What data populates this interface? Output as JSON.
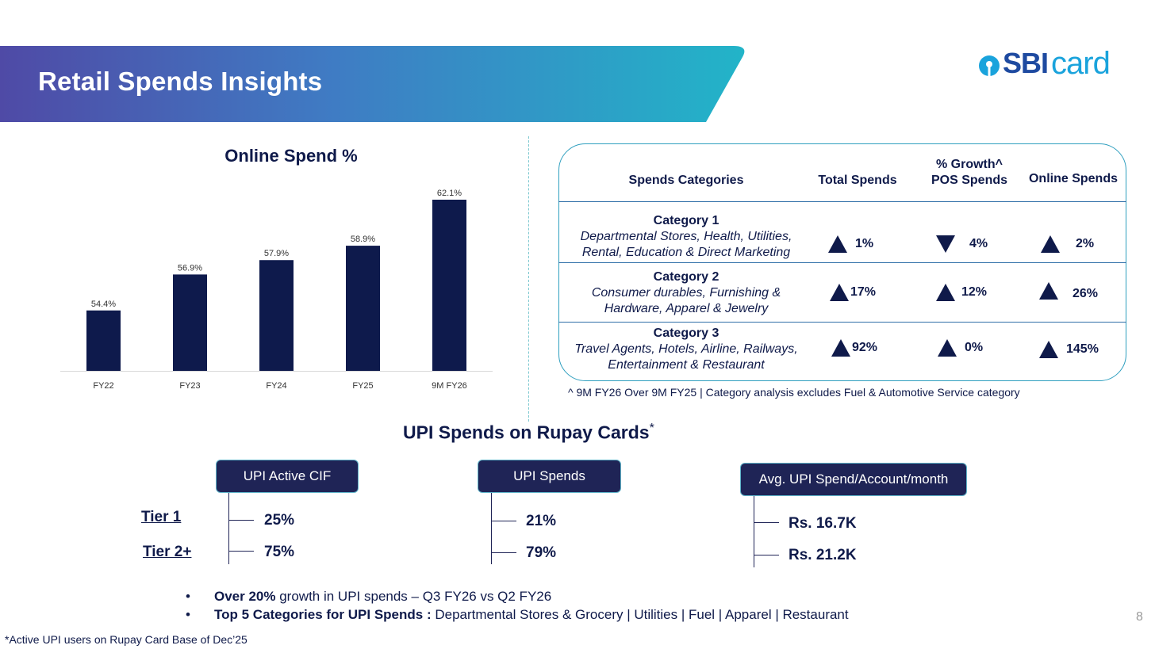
{
  "header": {
    "title": "Retail Spends Insights",
    "logo": {
      "sbi": "SBI",
      "card": "card"
    }
  },
  "chart_data": {
    "type": "bar",
    "title": "Online Spend %",
    "xlabel": "",
    "ylabel": "",
    "categories": [
      "FY22",
      "FY23",
      "FY24",
      "FY25",
      "9M FY26"
    ],
    "values": [
      54.4,
      56.9,
      57.9,
      58.9,
      62.1
    ],
    "value_labels": [
      "54.4%",
      "56.9%",
      "57.9%",
      "58.9%",
      "62.1%"
    ],
    "color": "#0e1a4c",
    "grid": false
  },
  "table": {
    "headers": {
      "category": "Spends Categories",
      "total": "Total Spends",
      "pos_top": "% Growth^",
      "pos": "POS Spends",
      "online": "Online Spends"
    },
    "rows": [
      {
        "name": "Category 1",
        "desc1": "Departmental Stores, Health, Utilities,",
        "desc2": "Rental, Education & Direct Marketing",
        "total": "1%",
        "total_dir": "up",
        "pos": "4%",
        "pos_dir": "down",
        "online": "2%",
        "online_dir": "up"
      },
      {
        "name": "Category 2",
        "desc1": "Consumer durables,  Furnishing &",
        "desc2": "Hardware, Apparel & Jewelry",
        "total": "17%",
        "total_dir": "up",
        "pos": "12%",
        "pos_dir": "up",
        "online": "26%",
        "online_dir": "up"
      },
      {
        "name": "Category 3",
        "desc1": "Travel Agents, Hotels, Airline, Railways,",
        "desc2": "Entertainment & Restaurant",
        "total": "92%",
        "total_dir": "up",
        "pos": "0%",
        "pos_dir": "up",
        "online": "145%",
        "online_dir": "up"
      }
    ],
    "footnote": "^ 9M FY26 Over 9M FY25 | Category analysis excludes Fuel & Automotive Service category"
  },
  "upi": {
    "title": "UPI Spends on Rupay Cards",
    "title_mark": "*",
    "tiers": [
      "Tier 1",
      "Tier 2+"
    ],
    "groups": [
      {
        "label": "UPI Active CIF",
        "values": [
          "25%",
          "75%"
        ]
      },
      {
        "label": "UPI Spends",
        "values": [
          "21%",
          "79%"
        ]
      },
      {
        "label": "Avg. UPI Spend/Account/month",
        "values": [
          "Rs. 16.7K",
          "Rs. 21.2K"
        ]
      }
    ]
  },
  "bullets": [
    {
      "bold": "Over 20%",
      "text": " growth in UPI spends – Q3 FY26 vs Q2 FY26"
    },
    {
      "bold": "Top 5 Categories for UPI Spends :",
      "text": " Departmental Stores & Grocery | Utilities | Fuel | Apparel | Restaurant"
    }
  ],
  "bottom_note": "*Active UPI users on Rupay Card Base of Dec’25",
  "page_number": "8"
}
